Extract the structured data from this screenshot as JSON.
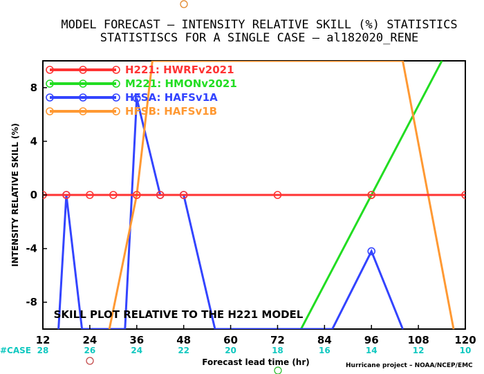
{
  "chart_data": {
    "type": "line",
    "title": "MODEL FORECAST – INTENSITY RELATIVE SKILL (%) STATISTICS",
    "subtitle": "STATISTISCS FOR A SINGLE CASE – al182020_RENE",
    "xlabel": "Forecast lead time (hr)",
    "ylabel": "INTENSITY RELATIVE SKILL (%)",
    "xlim": [
      12,
      120
    ],
    "ylim": [
      -10,
      10
    ],
    "x_ticks": [
      "12",
      "24",
      "36",
      "48",
      "60",
      "72",
      "84",
      "96",
      "108",
      "120"
    ],
    "y_ticks": [
      "-8",
      "-4",
      "0",
      "4",
      "8"
    ],
    "case_label": "#CASE",
    "case_counts": [
      "28",
      "26",
      "24",
      "22",
      "20",
      "18",
      "16",
      "14",
      "12",
      "10"
    ],
    "annotation": "SKILL PLOT RELATIVE TO THE H221 MODEL",
    "credit": "Hurricane project – NOAA/NCEP/EMC",
    "grid": false,
    "legend_position": "top-left",
    "series": [
      {
        "name": "H221: HWRFv2021",
        "color": "#ff3333",
        "x": [
          12,
          18,
          24,
          30,
          36,
          42,
          48,
          72,
          96,
          120
        ],
        "y": [
          0,
          0,
          0,
          0,
          0,
          0,
          0,
          0,
          0,
          0
        ],
        "markers": true
      },
      {
        "name": "M221: HMONv2021",
        "color": "#22dd22",
        "x": [
          78,
          96,
          114
        ],
        "y": [
          -10,
          0,
          10
        ],
        "markers": false,
        "marker_x": [
          96
        ],
        "marker_y": [
          0
        ]
      },
      {
        "name": "HFSA: HAFSv1A",
        "color": "#3344ff",
        "x": [
          16,
          18,
          22,
          33,
          36,
          42,
          48,
          56,
          86,
          96,
          104
        ],
        "y": [
          -10,
          0,
          -10,
          -10,
          7.2,
          0,
          0,
          -10,
          -10,
          -4.2,
          -10
        ],
        "markers": false,
        "marker_x": [
          18,
          36,
          42,
          48,
          96
        ],
        "marker_y": [
          0,
          7.2,
          0,
          0,
          -4.2
        ]
      },
      {
        "name": "HFSB: HAFSv1B",
        "color": "#ff9933",
        "x": [
          29,
          36,
          40,
          104,
          117
        ],
        "y": [
          -10,
          0,
          10,
          10,
          -10
        ],
        "markers": false,
        "marker_x": [
          36
        ],
        "marker_y": [
          0
        ]
      }
    ]
  }
}
